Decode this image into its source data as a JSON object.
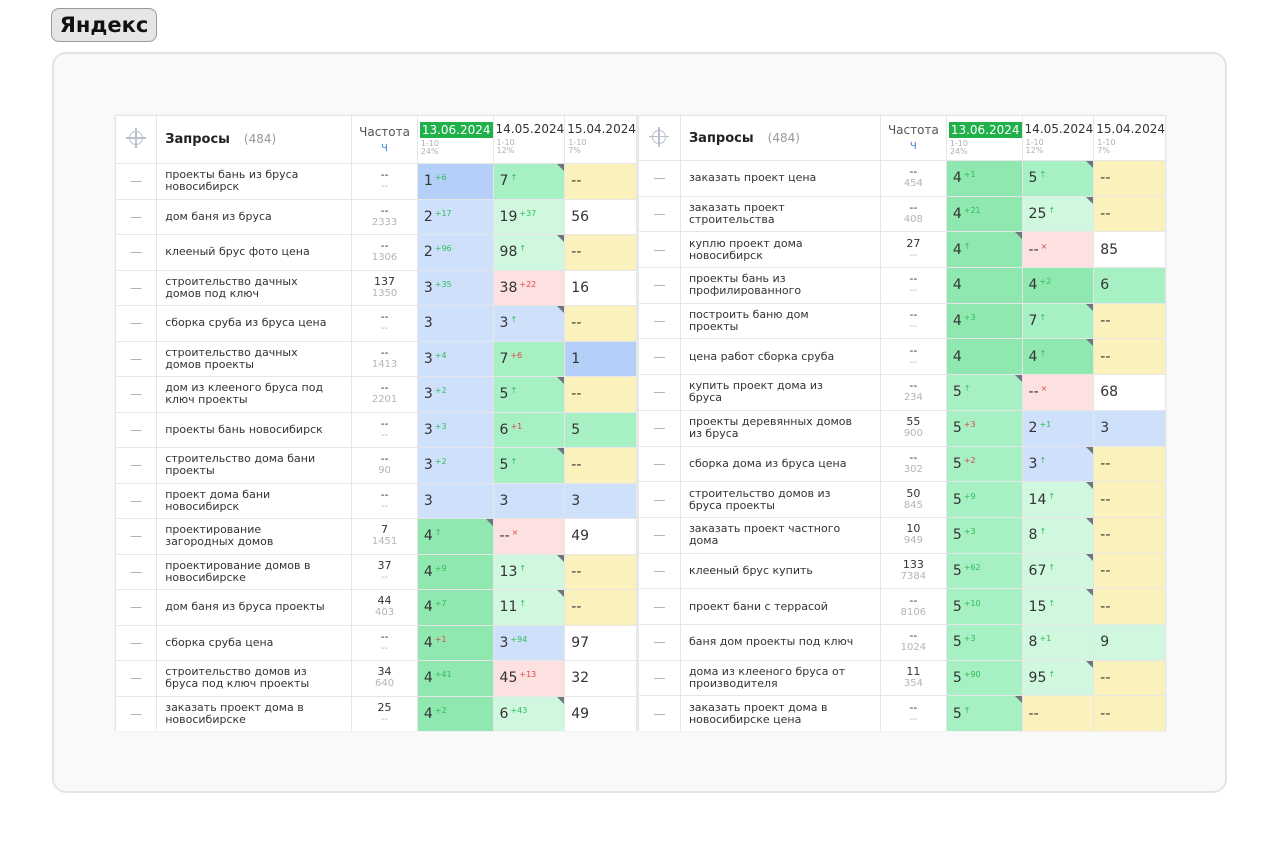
{
  "app": {
    "title": "Яндекс"
  },
  "tables": [
    {
      "header": {
        "query_label": "Запросы",
        "count": "(484)",
        "freq_label": "Частота",
        "freq_sub": "ч",
        "dates": [
          {
            "label": "13.06.2024",
            "range": "1-10",
            "pct": "24%"
          },
          {
            "label": "14.05.2024",
            "range": "1-10",
            "pct": "12%"
          },
          {
            "label": "15.04.2024",
            "range": "1-10",
            "pct": "7%"
          }
        ]
      },
      "rows": [
        {
          "q": [
            "проекты бань из бруса",
            "новосибирск"
          ],
          "f": [
            "--",
            "--"
          ],
          "p": [
            {
              "v": "1",
              "d": "+6",
              "s": "up",
              "c": "blue-d"
            },
            {
              "v": "7",
              "d": "↑",
              "s": "up",
              "c": "green",
              "t": 1
            },
            {
              "v": "--",
              "c": "yellow"
            }
          ]
        },
        {
          "q": [
            "дом баня из бруса",
            ""
          ],
          "f": [
            "--",
            "2333"
          ],
          "p": [
            {
              "v": "2",
              "d": "+17",
              "s": "up",
              "c": "blue"
            },
            {
              "v": "19",
              "d": "+37",
              "s": "up",
              "c": "green-l"
            },
            {
              "v": "56",
              "c": "white"
            }
          ]
        },
        {
          "q": [
            "клееный брус фото цена",
            ""
          ],
          "f": [
            "--",
            "1306"
          ],
          "p": [
            {
              "v": "2",
              "d": "+96",
              "s": "up",
              "c": "blue"
            },
            {
              "v": "98",
              "d": "↑",
              "s": "up",
              "c": "green-l",
              "t": 1
            },
            {
              "v": "--",
              "c": "yellow"
            }
          ]
        },
        {
          "q": [
            "строительство дачных",
            "домов под ключ"
          ],
          "f": [
            "137",
            "1350"
          ],
          "p": [
            {
              "v": "3",
              "d": "+35",
              "s": "up",
              "c": "blue"
            },
            {
              "v": "38",
              "d": "+22",
              "s": "dn",
              "c": "pink"
            },
            {
              "v": "16",
              "c": "white"
            }
          ]
        },
        {
          "q": [
            "сборка сруба из бруса цена",
            ""
          ],
          "f": [
            "--",
            "--"
          ],
          "p": [
            {
              "v": "3",
              "c": "blue"
            },
            {
              "v": "3",
              "d": "↑",
              "s": "up",
              "c": "blue",
              "t": 1
            },
            {
              "v": "--",
              "c": "yellow"
            }
          ]
        },
        {
          "q": [
            "строительство дачных",
            "домов проекты"
          ],
          "f": [
            "--",
            "1413"
          ],
          "p": [
            {
              "v": "3",
              "d": "+4",
              "s": "up",
              "c": "blue"
            },
            {
              "v": "7",
              "d": "+6",
              "s": "dn",
              "c": "green"
            },
            {
              "v": "1",
              "c": "blue-d"
            }
          ]
        },
        {
          "q": [
            "дом из клееного бруса под",
            "ключ проекты"
          ],
          "f": [
            "--",
            "2201"
          ],
          "p": [
            {
              "v": "3",
              "d": "+2",
              "s": "up",
              "c": "blue"
            },
            {
              "v": "5",
              "d": "↑",
              "s": "up",
              "c": "green",
              "t": 1
            },
            {
              "v": "--",
              "c": "yellow"
            }
          ]
        },
        {
          "q": [
            "проекты бань новосибирск",
            ""
          ],
          "f": [
            "--",
            "--"
          ],
          "p": [
            {
              "v": "3",
              "d": "+3",
              "s": "up",
              "c": "blue"
            },
            {
              "v": "6",
              "d": "+1",
              "s": "dn",
              "c": "green"
            },
            {
              "v": "5",
              "c": "green"
            }
          ]
        },
        {
          "q": [
            "строительство дома бани",
            "проекты"
          ],
          "f": [
            "--",
            "90"
          ],
          "p": [
            {
              "v": "3",
              "d": "+2",
              "s": "up",
              "c": "blue"
            },
            {
              "v": "5",
              "d": "↑",
              "s": "up",
              "c": "green",
              "t": 1
            },
            {
              "v": "--",
              "c": "yellow"
            }
          ]
        },
        {
          "q": [
            "проект дома бани",
            "новосибирск"
          ],
          "f": [
            "--",
            "--"
          ],
          "p": [
            {
              "v": "3",
              "c": "blue"
            },
            {
              "v": "3",
              "c": "blue"
            },
            {
              "v": "3",
              "c": "blue"
            }
          ]
        },
        {
          "q": [
            "проектирование",
            "загородных домов"
          ],
          "f": [
            "7",
            "1451"
          ],
          "p": [
            {
              "v": "4",
              "d": "↑",
              "s": "up",
              "c": "green-d",
              "t": 1
            },
            {
              "v": "--",
              "d": "×",
              "s": "dn",
              "c": "pink"
            },
            {
              "v": "49",
              "c": "white"
            }
          ]
        },
        {
          "q": [
            "проектирование домов в",
            "новосибирске"
          ],
          "f": [
            "37",
            "--"
          ],
          "p": [
            {
              "v": "4",
              "d": "+9",
              "s": "up",
              "c": "green-d"
            },
            {
              "v": "13",
              "d": "↑",
              "s": "up",
              "c": "green-l",
              "t": 1
            },
            {
              "v": "--",
              "c": "yellow"
            }
          ]
        },
        {
          "q": [
            "дом баня из бруса проекты",
            ""
          ],
          "f": [
            "44",
            "403"
          ],
          "p": [
            {
              "v": "4",
              "d": "+7",
              "s": "up",
              "c": "green-d"
            },
            {
              "v": "11",
              "d": "↑",
              "s": "up",
              "c": "green-l",
              "t": 1
            },
            {
              "v": "--",
              "c": "yellow"
            }
          ]
        },
        {
          "q": [
            "сборка сруба цена",
            ""
          ],
          "f": [
            "--",
            "--"
          ],
          "p": [
            {
              "v": "4",
              "d": "+1",
              "s": "dn",
              "c": "green-d"
            },
            {
              "v": "3",
              "d": "+94",
              "s": "up",
              "c": "blue"
            },
            {
              "v": "97",
              "c": "white"
            }
          ]
        },
        {
          "q": [
            "строительство домов из",
            "бруса под ключ проекты"
          ],
          "f": [
            "34",
            "640"
          ],
          "p": [
            {
              "v": "4",
              "d": "+41",
              "s": "up",
              "c": "green-d"
            },
            {
              "v": "45",
              "d": "+13",
              "s": "dn",
              "c": "pink"
            },
            {
              "v": "32",
              "c": "white"
            }
          ]
        },
        {
          "q": [
            "заказать проект дома в",
            "новосибирске"
          ],
          "f": [
            "25",
            "--"
          ],
          "p": [
            {
              "v": "4",
              "d": "+2",
              "s": "up",
              "c": "green-d"
            },
            {
              "v": "6",
              "d": "+43",
              "s": "up",
              "c": "green-l",
              "t": 1
            },
            {
              "v": "49",
              "c": "white"
            }
          ]
        }
      ]
    },
    {
      "header": {
        "query_label": "Запросы",
        "count": "(484)",
        "freq_label": "Частота",
        "freq_sub": "ч",
        "dates": [
          {
            "label": "13.06.2024",
            "range": "1-10",
            "pct": "24%"
          },
          {
            "label": "14.05.2024",
            "range": "1-10",
            "pct": "12%"
          },
          {
            "label": "15.04.2024",
            "range": "1-10",
            "pct": "7%"
          }
        ]
      },
      "rows": [
        {
          "q": [
            "заказать проект цена",
            ""
          ],
          "f": [
            "--",
            "454"
          ],
          "p": [
            {
              "v": "4",
              "d": "+1",
              "s": "up",
              "c": "green-d"
            },
            {
              "v": "5",
              "d": "↑",
              "s": "up",
              "c": "green",
              "t": 1
            },
            {
              "v": "--",
              "c": "yellow"
            }
          ]
        },
        {
          "q": [
            "заказать проект",
            "строительства"
          ],
          "f": [
            "--",
            "408"
          ],
          "p": [
            {
              "v": "4",
              "d": "+21",
              "s": "up",
              "c": "green-d"
            },
            {
              "v": "25",
              "d": "↑",
              "s": "up",
              "c": "green-l",
              "t": 1
            },
            {
              "v": "--",
              "c": "yellow"
            }
          ]
        },
        {
          "q": [
            "куплю проект дома",
            "новосибирск"
          ],
          "f": [
            "27",
            "--"
          ],
          "p": [
            {
              "v": "4",
              "d": "↑",
              "s": "up",
              "c": "green-d",
              "t": 1
            },
            {
              "v": "--",
              "d": "×",
              "s": "dn",
              "c": "pink"
            },
            {
              "v": "85",
              "c": "white"
            }
          ]
        },
        {
          "q": [
            "проекты бань из",
            "профилированного"
          ],
          "f": [
            "--",
            "--"
          ],
          "p": [
            {
              "v": "4",
              "c": "green-d"
            },
            {
              "v": "4",
              "d": "+2",
              "s": "up",
              "c": "green-d"
            },
            {
              "v": "6",
              "c": "green"
            }
          ]
        },
        {
          "q": [
            "построить баню дом",
            "проекты"
          ],
          "f": [
            "--",
            "--"
          ],
          "p": [
            {
              "v": "4",
              "d": "+3",
              "s": "up",
              "c": "green-d"
            },
            {
              "v": "7",
              "d": "↑",
              "s": "up",
              "c": "green",
              "t": 1
            },
            {
              "v": "--",
              "c": "yellow"
            }
          ]
        },
        {
          "q": [
            "цена работ сборка сруба",
            ""
          ],
          "f": [
            "--",
            "--"
          ],
          "p": [
            {
              "v": "4",
              "c": "green-d"
            },
            {
              "v": "4",
              "d": "↑",
              "s": "up",
              "c": "green-d",
              "t": 1
            },
            {
              "v": "--",
              "c": "yellow"
            }
          ]
        },
        {
          "q": [
            "купить проект дома из",
            "бруса"
          ],
          "f": [
            "--",
            "234"
          ],
          "p": [
            {
              "v": "5",
              "d": "↑",
              "s": "up",
              "c": "green",
              "t": 1
            },
            {
              "v": "--",
              "d": "×",
              "s": "dn",
              "c": "pink"
            },
            {
              "v": "68",
              "c": "white"
            }
          ]
        },
        {
          "q": [
            "проекты деревянных домов",
            "из бруса"
          ],
          "f": [
            "55",
            "900"
          ],
          "p": [
            {
              "v": "5",
              "d": "+3",
              "s": "dn",
              "c": "green"
            },
            {
              "v": "2",
              "d": "+1",
              "s": "up",
              "c": "blue"
            },
            {
              "v": "3",
              "c": "blue"
            }
          ]
        },
        {
          "q": [
            "сборка дома из бруса цена",
            ""
          ],
          "f": [
            "--",
            "302"
          ],
          "p": [
            {
              "v": "5",
              "d": "+2",
              "s": "dn",
              "c": "green"
            },
            {
              "v": "3",
              "d": "↑",
              "s": "up",
              "c": "blue",
              "t": 1
            },
            {
              "v": "--",
              "c": "yellow"
            }
          ]
        },
        {
          "q": [
            "строительство домов из",
            "бруса проекты"
          ],
          "f": [
            "50",
            "845"
          ],
          "p": [
            {
              "v": "5",
              "d": "+9",
              "s": "up",
              "c": "green"
            },
            {
              "v": "14",
              "d": "↑",
              "s": "up",
              "c": "green-l",
              "t": 1
            },
            {
              "v": "--",
              "c": "yellow"
            }
          ]
        },
        {
          "q": [
            "заказать проект частного",
            "дома"
          ],
          "f": [
            "10",
            "949"
          ],
          "p": [
            {
              "v": "5",
              "d": "+3",
              "s": "up",
              "c": "green"
            },
            {
              "v": "8",
              "d": "↑",
              "s": "up",
              "c": "green-l",
              "t": 1
            },
            {
              "v": "--",
              "c": "yellow"
            }
          ]
        },
        {
          "q": [
            "клееный брус купить",
            ""
          ],
          "f": [
            "133",
            "7384"
          ],
          "p": [
            {
              "v": "5",
              "d": "+62",
              "s": "up",
              "c": "green"
            },
            {
              "v": "67",
              "d": "↑",
              "s": "up",
              "c": "green-l",
              "t": 1
            },
            {
              "v": "--",
              "c": "yellow"
            }
          ]
        },
        {
          "q": [
            "проект бани с террасой",
            ""
          ],
          "f": [
            "--",
            "8106"
          ],
          "p": [
            {
              "v": "5",
              "d": "+10",
              "s": "up",
              "c": "green"
            },
            {
              "v": "15",
              "d": "↑",
              "s": "up",
              "c": "green-l",
              "t": 1
            },
            {
              "v": "--",
              "c": "yellow"
            }
          ]
        },
        {
          "q": [
            "баня дом проекты под ключ",
            ""
          ],
          "f": [
            "--",
            "1024"
          ],
          "p": [
            {
              "v": "5",
              "d": "+3",
              "s": "up",
              "c": "green"
            },
            {
              "v": "8",
              "d": "+1",
              "s": "up",
              "c": "green-l"
            },
            {
              "v": "9",
              "c": "green-l"
            }
          ]
        },
        {
          "q": [
            "дома из клееного бруса от",
            "производителя"
          ],
          "f": [
            "11",
            "354"
          ],
          "p": [
            {
              "v": "5",
              "d": "+90",
              "s": "up",
              "c": "green"
            },
            {
              "v": "95",
              "d": "↑",
              "s": "up",
              "c": "green-l",
              "t": 1
            },
            {
              "v": "--",
              "c": "yellow"
            }
          ]
        },
        {
          "q": [
            "заказать проект дома в",
            "новосибирске цена"
          ],
          "f": [
            "--",
            "--"
          ],
          "p": [
            {
              "v": "5",
              "d": "↑",
              "s": "up",
              "c": "green",
              "t": 1
            },
            {
              "v": "--",
              "c": "yellow"
            },
            {
              "v": "--",
              "c": "yellow"
            }
          ]
        }
      ]
    }
  ]
}
